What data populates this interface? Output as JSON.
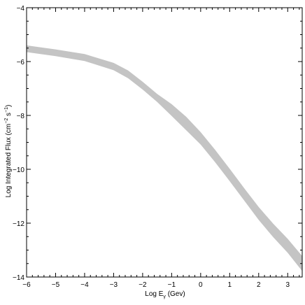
{
  "chart_data": {
    "type": "area",
    "title": "",
    "xlabel": {
      "prefix": "Log E",
      "subscript": "γ",
      "suffix": " (Gev)"
    },
    "ylabel": {
      "base": "Log Integrated Flux (cm",
      "sup1": "−2",
      "mid": " s",
      "sup2": "−1",
      "end": ")"
    },
    "xlim": [
      -6,
      3.5
    ],
    "ylim": [
      -14,
      -4
    ],
    "xticks": [
      -6,
      -5,
      -4,
      -3,
      -2,
      -1,
      0,
      1,
      2,
      3
    ],
    "xtick_labels": [
      "−6",
      "−5",
      "−4",
      "−3",
      "−2",
      "−1",
      "0",
      "1",
      "2",
      "3"
    ],
    "yticks": [
      -14,
      -12,
      -10,
      -8,
      -6,
      -4
    ],
    "ytick_labels": [
      "−14",
      "−12",
      "−10",
      "−8",
      "−6",
      "−4"
    ],
    "grid": false,
    "band_color": "#c4c4c4",
    "series": [
      {
        "x": [
          -6.0,
          -5.0,
          -4.0,
          -3.0,
          -2.5,
          -2.0,
          -1.5,
          -1.0,
          -0.5,
          0.0,
          0.5,
          1.0,
          1.5,
          2.0,
          2.5,
          3.0,
          3.5
        ],
        "upper": [
          -5.4,
          -5.55,
          -5.72,
          -6.05,
          -6.33,
          -6.75,
          -7.2,
          -7.58,
          -8.05,
          -8.62,
          -9.28,
          -9.98,
          -10.7,
          -11.4,
          -12.02,
          -12.58,
          -13.22
        ],
        "lower": [
          -5.65,
          -5.8,
          -5.98,
          -6.32,
          -6.62,
          -7.04,
          -7.5,
          -8.02,
          -8.55,
          -9.08,
          -9.74,
          -10.44,
          -11.16,
          -11.88,
          -12.52,
          -13.1,
          -13.78
        ]
      }
    ]
  }
}
